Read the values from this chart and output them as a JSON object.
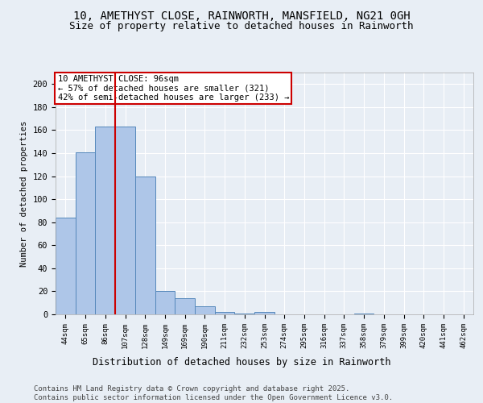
{
  "title_line1": "10, AMETHYST CLOSE, RAINWORTH, MANSFIELD, NG21 0GH",
  "title_line2": "Size of property relative to detached houses in Rainworth",
  "xlabel": "Distribution of detached houses by size in Rainworth",
  "ylabel": "Number of detached properties",
  "categories": [
    "44sqm",
    "65sqm",
    "86sqm",
    "107sqm",
    "128sqm",
    "149sqm",
    "169sqm",
    "190sqm",
    "211sqm",
    "232sqm",
    "253sqm",
    "274sqm",
    "295sqm",
    "316sqm",
    "337sqm",
    "358sqm",
    "379sqm",
    "399sqm",
    "420sqm",
    "441sqm",
    "462sqm"
  ],
  "values": [
    84,
    141,
    163,
    163,
    120,
    20,
    14,
    7,
    2,
    1,
    2,
    0,
    0,
    0,
    0,
    1,
    0,
    0,
    0,
    0,
    0
  ],
  "bar_color": "#aec6e8",
  "bar_edge_color": "#5588bb",
  "vline_color": "#cc0000",
  "annotation_text": "10 AMETHYST CLOSE: 96sqm\n← 57% of detached houses are smaller (321)\n42% of semi-detached houses are larger (233) →",
  "annotation_box_color": "#ffffff",
  "annotation_box_edge": "#cc0000",
  "ylim": [
    0,
    210
  ],
  "yticks": [
    0,
    20,
    40,
    60,
    80,
    100,
    120,
    140,
    160,
    180,
    200
  ],
  "background_color": "#e8eef5",
  "plot_bg_color": "#e8eef5",
  "footer_text": "Contains HM Land Registry data © Crown copyright and database right 2025.\nContains public sector information licensed under the Open Government Licence v3.0.",
  "title_fontsize": 10,
  "subtitle_fontsize": 9,
  "annotation_fontsize": 7.5,
  "footer_fontsize": 6.5,
  "xlabel_fontsize": 8.5,
  "ylabel_fontsize": 7.5
}
